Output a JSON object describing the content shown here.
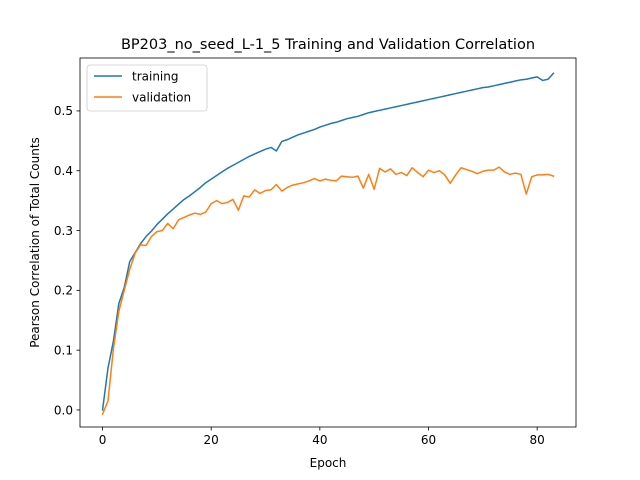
{
  "chart_data": {
    "type": "line",
    "title": "BP203_no_seed_L-1_5  Training and Validation Correlation",
    "xlabel": "Epoch",
    "ylabel": "Pearson Correlation of Total Counts",
    "xlim": [
      -4.15,
      87.15
    ],
    "ylim": [
      -0.0285,
      0.5885
    ],
    "xticks": [
      0,
      20,
      40,
      60,
      80
    ],
    "yticks": [
      0.0,
      0.1,
      0.2,
      0.3,
      0.4,
      0.5
    ],
    "xtick_labels": [
      "0",
      "20",
      "40",
      "60",
      "80"
    ],
    "ytick_labels": [
      "0.0",
      "0.1",
      "0.2",
      "0.3",
      "0.4",
      "0.5"
    ],
    "grid": false,
    "legend_position": "top-left",
    "x": [
      0,
      1,
      2,
      3,
      4,
      5,
      6,
      7,
      8,
      9,
      10,
      11,
      12,
      13,
      14,
      15,
      16,
      17,
      18,
      19,
      20,
      21,
      22,
      23,
      24,
      25,
      26,
      27,
      28,
      29,
      30,
      31,
      32,
      33,
      34,
      35,
      36,
      37,
      38,
      39,
      40,
      41,
      42,
      43,
      44,
      45,
      46,
      47,
      48,
      49,
      50,
      51,
      52,
      53,
      54,
      55,
      56,
      57,
      58,
      59,
      60,
      61,
      62,
      63,
      64,
      65,
      66,
      67,
      68,
      69,
      70,
      71,
      72,
      73,
      74,
      75,
      76,
      77,
      78,
      79,
      80,
      81,
      82,
      83
    ],
    "series": [
      {
        "name": "training",
        "color": "#1f77b4",
        "values": [
          0.0,
          0.07,
          0.115,
          0.178,
          0.205,
          0.248,
          0.263,
          0.278,
          0.29,
          0.299,
          0.31,
          0.319,
          0.328,
          0.336,
          0.344,
          0.352,
          0.358,
          0.365,
          0.372,
          0.38,
          0.386,
          0.392,
          0.398,
          0.404,
          0.409,
          0.414,
          0.419,
          0.424,
          0.428,
          0.432,
          0.436,
          0.439,
          0.433,
          0.449,
          0.452,
          0.456,
          0.46,
          0.463,
          0.466,
          0.469,
          0.473,
          0.476,
          0.479,
          0.481,
          0.484,
          0.487,
          0.489,
          0.491,
          0.494,
          0.497,
          0.499,
          0.501,
          0.503,
          0.505,
          0.507,
          0.509,
          0.511,
          0.513,
          0.515,
          0.517,
          0.519,
          0.521,
          0.523,
          0.525,
          0.527,
          0.529,
          0.531,
          0.533,
          0.535,
          0.537,
          0.539,
          0.54,
          0.542,
          0.544,
          0.546,
          0.548,
          0.55,
          0.552,
          0.553,
          0.555,
          0.557,
          0.551,
          0.553,
          0.563
        ]
      },
      {
        "name": "validation",
        "color": "#ff7f0e",
        "values": [
          -0.007,
          0.015,
          0.102,
          0.165,
          0.2,
          0.235,
          0.262,
          0.276,
          0.275,
          0.29,
          0.298,
          0.3,
          0.312,
          0.303,
          0.318,
          0.322,
          0.326,
          0.329,
          0.327,
          0.331,
          0.345,
          0.35,
          0.345,
          0.347,
          0.352,
          0.334,
          0.358,
          0.356,
          0.368,
          0.362,
          0.367,
          0.368,
          0.377,
          0.366,
          0.372,
          0.376,
          0.378,
          0.38,
          0.383,
          0.387,
          0.383,
          0.386,
          0.384,
          0.383,
          0.391,
          0.39,
          0.389,
          0.391,
          0.371,
          0.394,
          0.369,
          0.404,
          0.398,
          0.403,
          0.394,
          0.397,
          0.392,
          0.405,
          0.397,
          0.39,
          0.401,
          0.397,
          0.4,
          0.393,
          0.379,
          0.393,
          0.405,
          0.402,
          0.399,
          0.395,
          0.399,
          0.401,
          0.401,
          0.406,
          0.398,
          0.394,
          0.396,
          0.394,
          0.361,
          0.39,
          0.393,
          0.393,
          0.394,
          0.391
        ]
      }
    ]
  }
}
